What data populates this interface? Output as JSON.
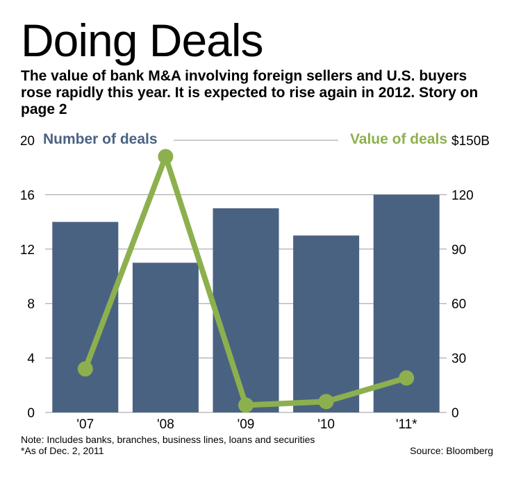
{
  "title": "Doing Deals",
  "subtitle": "The value of bank M&A involving foreign sellers and U.S. buyers rose rapidly this year. It is expected to rise again in 2012. Story on page 2",
  "notes": {
    "line1": "Note: Includes banks, branches, business lines, loans and securities",
    "line2": "*As of Dec. 2, 2011",
    "source": "Source: Bloomberg"
  },
  "colors": {
    "bar": "#4a6282",
    "line": "#8db04e",
    "grid": "#9a9a9a",
    "text": "#000000"
  },
  "chart_data": {
    "type": "bar",
    "categories": [
      "'07",
      "'08",
      "'09",
      "'10",
      "'11*"
    ],
    "series": [
      {
        "name": "Number of deals",
        "type": "bar",
        "axis": "left",
        "values": [
          14,
          11,
          15,
          13,
          16
        ]
      },
      {
        "name": "Value of deals",
        "type": "line",
        "axis": "right",
        "values": [
          24,
          141,
          4,
          6,
          19
        ]
      }
    ],
    "y_left": {
      "ticks": [
        "0",
        "4",
        "8",
        "12",
        "16",
        "20"
      ],
      "tick_values": [
        0,
        4,
        8,
        12,
        16,
        20
      ],
      "ylim": [
        0,
        20
      ]
    },
    "y_right": {
      "ticks": [
        "0",
        "30",
        "60",
        "90",
        "120",
        "$150B"
      ],
      "tick_values": [
        0,
        30,
        60,
        90,
        120,
        150
      ],
      "ylim": [
        0,
        150
      ]
    },
    "legend": {
      "left_label": "Number of deals",
      "right_label": "Value of deals"
    },
    "grid": true
  }
}
